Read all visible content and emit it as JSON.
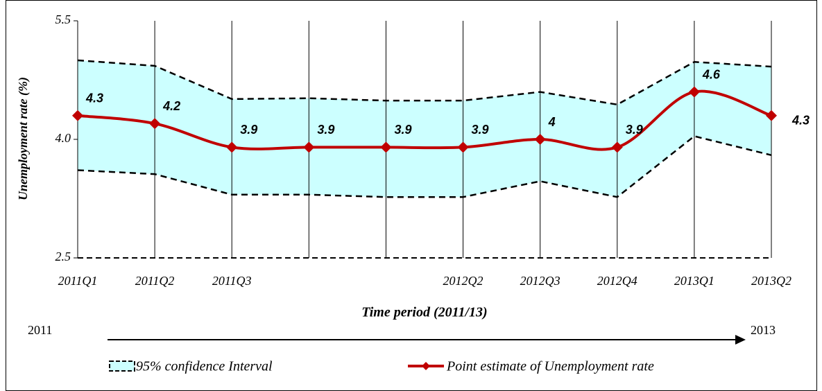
{
  "chart_data": {
    "type": "line",
    "y_label": "Unemployment rate (%)",
    "x_label": "Time period (2011/13)",
    "categories": [
      "2011Q1",
      "2011Q2",
      "2011Q3",
      null,
      null,
      "2012Q2",
      "2012Q3",
      "2012Q4",
      "2013Q1",
      "2013Q2"
    ],
    "ylim": [
      2.5,
      5.5
    ],
    "yticks": [
      {
        "value": 2.5,
        "label": "2.5"
      },
      {
        "value": 4,
        "label": "4.0"
      },
      {
        "value": 5.5,
        "label": "5.5"
      }
    ],
    "grid": true,
    "band": {
      "name": "95% confidence Interval",
      "color": "#ccffff",
      "upper": [
        5.0,
        4.93,
        4.51,
        4.52,
        4.49,
        4.49,
        4.6,
        4.44,
        4.98,
        4.92
      ],
      "lower": [
        3.61,
        3.56,
        3.3,
        3.3,
        3.27,
        3.27,
        3.47,
        3.27,
        4.04,
        3.8
      ]
    },
    "series": [
      {
        "name": "Point estimate of Unemployment rate",
        "color": "#c00000",
        "values": [
          4.3,
          4.2,
          3.9,
          3.9,
          3.9,
          3.9,
          4.0,
          3.9,
          4.6,
          4.3
        ]
      }
    ],
    "timeline": {
      "start": "2011",
      "end": "2013"
    }
  }
}
